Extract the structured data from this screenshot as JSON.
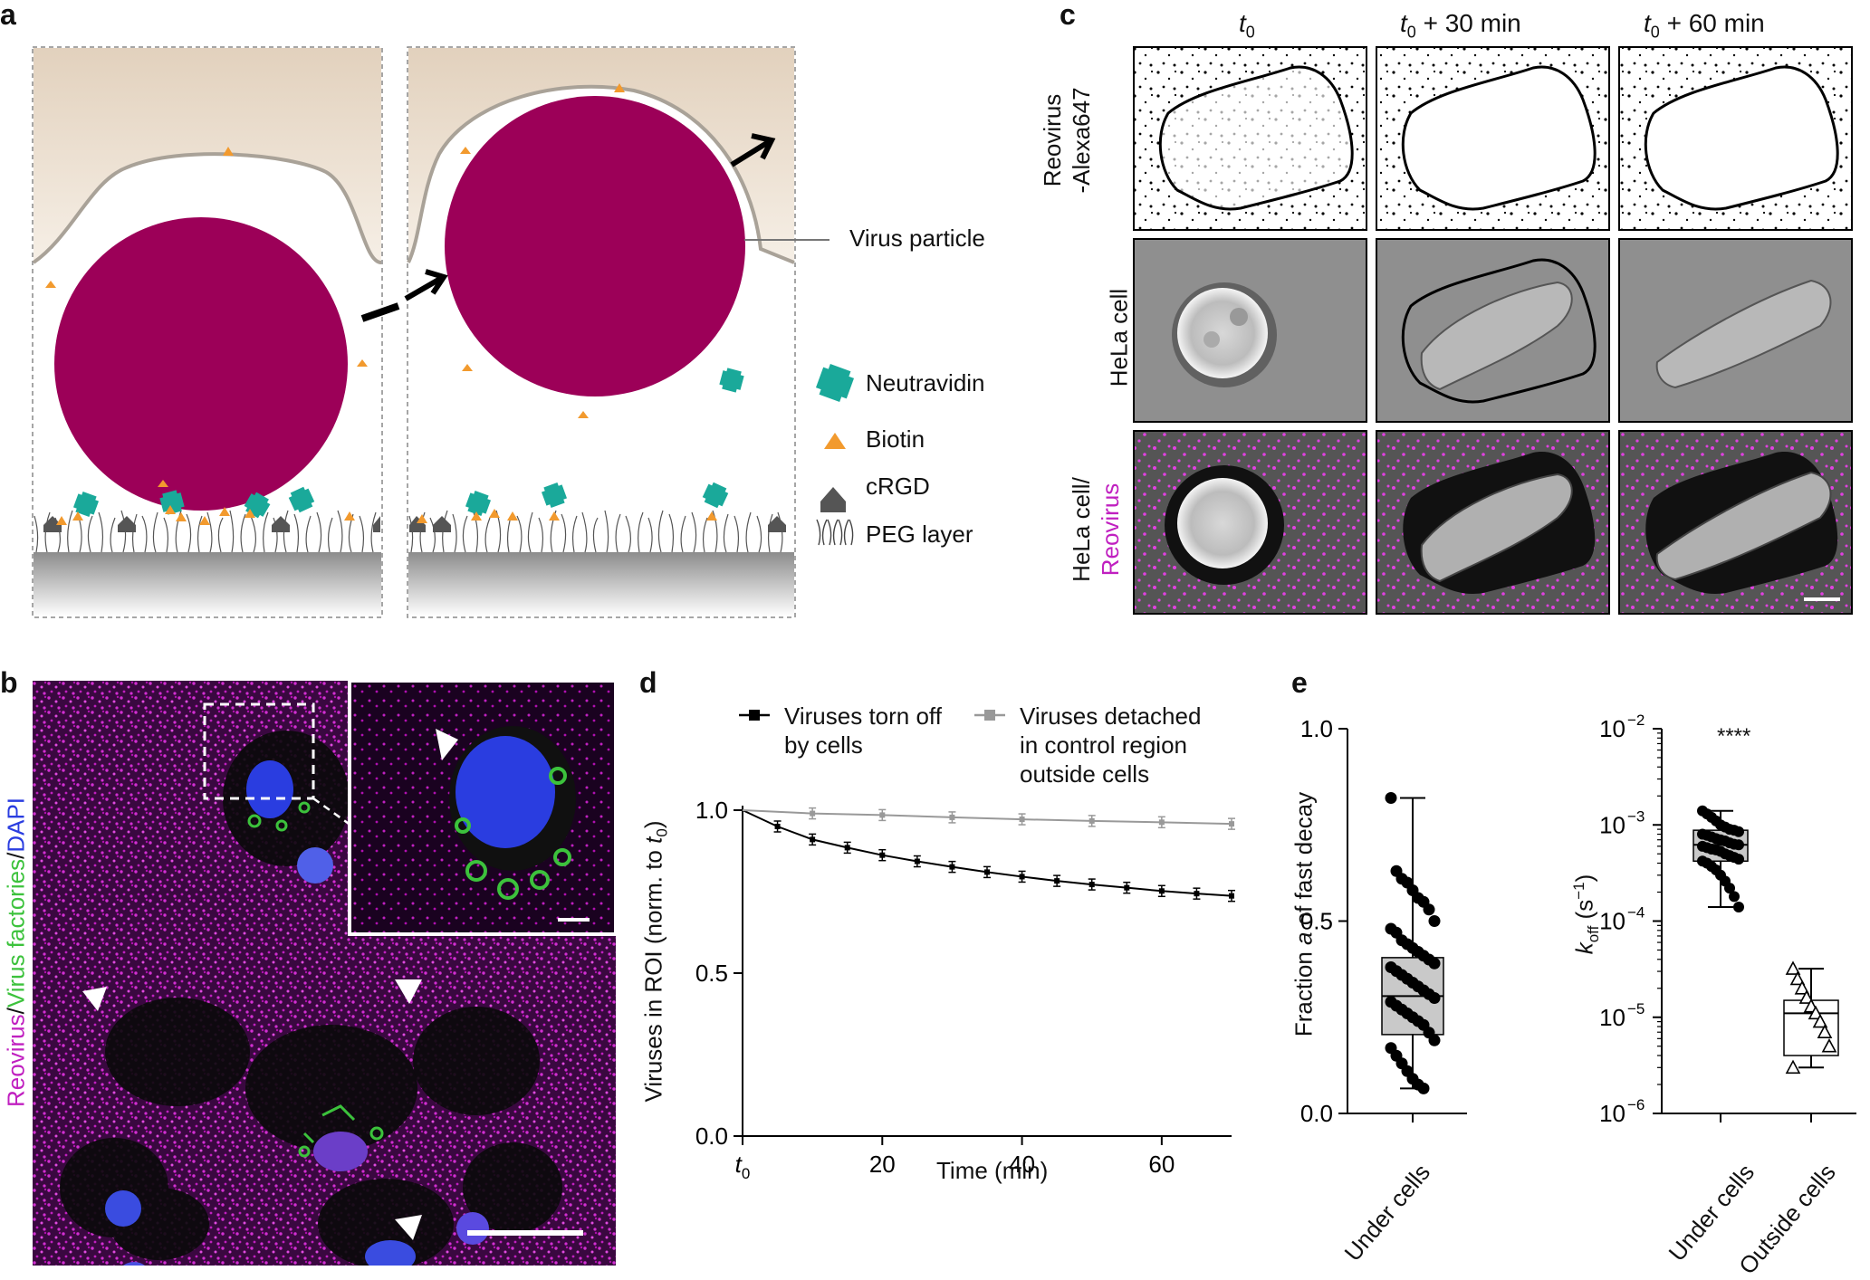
{
  "panels": {
    "a": {
      "label": "a",
      "virus_label": "Virus particle",
      "legend": [
        {
          "icon": "neutravidin-icon",
          "text": "Neutravidin",
          "color": "#1aa99a"
        },
        {
          "icon": "biotin-icon",
          "text": "Biotin",
          "color": "#f29a2e"
        },
        {
          "icon": "crgd-icon",
          "text": "cRGD",
          "color": "#555555"
        },
        {
          "icon": "peg-icon",
          "text": "PEG layer",
          "color": "#444444"
        }
      ],
      "colors": {
        "virus": "#9c0058",
        "cell": "#e6d6c4",
        "substrate": "#9a9a9a"
      }
    },
    "b": {
      "label": "b",
      "ylabel_parts": [
        "Reovirus",
        "/",
        "Virus factories",
        "/",
        "DAPI"
      ],
      "colors": {
        "reovirus": "#c020c0",
        "factories": "#3cc23c",
        "dapi": "#2a3de0"
      }
    },
    "c": {
      "label": "c",
      "columns": [
        "t0",
        "t0 + 30 min",
        "t0 + 60 min"
      ],
      "col_t": [
        "t",
        "t",
        "t"
      ],
      "col_sub": [
        "0",
        "0",
        "0"
      ],
      "col_rest": [
        "",
        " + 30 min",
        " + 60 min"
      ],
      "rows": [
        "Reovirus -Alexa647",
        "HeLa cell",
        "HeLa cell/ Reovirus"
      ],
      "row_label_lines": [
        [
          "Reovirus",
          "-Alexa647"
        ],
        [
          "HeLa cell"
        ],
        [
          "HeLa cell/",
          "Reovirus"
        ]
      ]
    },
    "d": {
      "label": "d",
      "legend": [
        "Viruses torn off by cells",
        "Viruses detached in control region outside cells"
      ],
      "legend_lines": [
        [
          "Viruses torn off",
          "by cells"
        ],
        [
          "Viruses detached",
          "in control region",
          "outside cells"
        ]
      ],
      "xlabel": "Time (min)",
      "ylabel": "Viruses in ROI (norm. to t0)",
      "ylabel_main": "Viruses in ROI (norm. to ",
      "ylabel_t": "t",
      "ylabel_sub": "0",
      "ylabel_end": ")",
      "x_first_tick": "t0",
      "x_first_t": "t",
      "x_first_sub": "0",
      "xticks": [
        "20",
        "40",
        "60"
      ],
      "yticks": [
        "0.0",
        "0.5",
        "1.0"
      ]
    },
    "e": {
      "label": "e",
      "left_ylabel": "Fraction a of fast decay",
      "left_ylabel_pre": "Fraction ",
      "left_ylabel_italic": "a",
      "left_ylabel_post": " of fast decay",
      "left_yticks": [
        "0.0",
        "0.5",
        "1.0"
      ],
      "left_category": "Under cells",
      "right_ylabel_k": "k",
      "right_ylabel_sub": "off",
      "right_ylabel_unit": " (s",
      "right_ylabel_exp": "−1",
      "right_ylabel_close": ")",
      "right_yticks_base": [
        "10",
        "10",
        "10",
        "10",
        "10"
      ],
      "right_yticks_exp": [
        "−2",
        "−3",
        "−4",
        "−5",
        "−6"
      ],
      "right_categories": [
        "Under cells",
        "Outside cells"
      ],
      "significance": "****"
    }
  },
  "chart_data": [
    {
      "type": "line",
      "panel": "d",
      "xlabel": "Time (min)",
      "ylabel": "Viruses in ROI (norm. to t0)",
      "xlim": [
        0,
        70
      ],
      "ylim": [
        0,
        1.0
      ],
      "series": [
        {
          "name": "Viruses torn off by cells",
          "color": "#000000",
          "x": [
            0,
            5,
            10,
            15,
            20,
            25,
            30,
            35,
            40,
            45,
            50,
            55,
            60,
            65,
            70
          ],
          "y": [
            1.0,
            0.95,
            0.91,
            0.885,
            0.862,
            0.843,
            0.826,
            0.81,
            0.796,
            0.783,
            0.772,
            0.762,
            0.752,
            0.744,
            0.737
          ]
        },
        {
          "name": "Viruses detached in control region outside cells",
          "color": "#999999",
          "x": [
            0,
            10,
            20,
            30,
            40,
            50,
            60,
            70
          ],
          "y": [
            1.0,
            0.99,
            0.985,
            0.978,
            0.972,
            0.967,
            0.963,
            0.958
          ]
        }
      ]
    },
    {
      "type": "box",
      "panel": "e-left",
      "ylabel": "Fraction a of fast decay",
      "ylim": [
        0,
        1.0
      ],
      "categories": [
        "Under cells"
      ],
      "box": {
        "min": 0.065,
        "q1": 0.205,
        "median": 0.305,
        "q3": 0.405,
        "max": 0.82
      },
      "points": [
        0.82,
        0.63,
        0.61,
        0.6,
        0.58,
        0.56,
        0.55,
        0.53,
        0.5,
        0.48,
        0.47,
        0.45,
        0.44,
        0.43,
        0.42,
        0.41,
        0.4,
        0.39,
        0.38,
        0.37,
        0.36,
        0.35,
        0.34,
        0.33,
        0.32,
        0.31,
        0.3,
        0.29,
        0.28,
        0.27,
        0.26,
        0.25,
        0.24,
        0.23,
        0.21,
        0.19,
        0.17,
        0.15,
        0.13,
        0.11,
        0.09,
        0.075,
        0.065
      ]
    },
    {
      "type": "box",
      "panel": "e-right",
      "ylabel": "koff (s-1)",
      "yscale": "log",
      "ylim": [
        1e-06,
        0.01
      ],
      "categories": [
        "Under cells",
        "Outside cells"
      ],
      "boxes": [
        {
          "min": 0.00014,
          "q1": 0.00042,
          "median": 0.00062,
          "q3": 0.00088,
          "max": 0.0014,
          "points": [
            0.0014,
            0.0013,
            0.0012,
            0.0011,
            0.001,
            0.00095,
            0.0009,
            0.00088,
            0.00085,
            0.0008,
            0.00078,
            0.00075,
            0.00072,
            0.0007,
            0.00068,
            0.00065,
            0.00063,
            0.00062,
            0.0006,
            0.00058,
            0.00056,
            0.00055,
            0.00053,
            0.0005,
            0.00048,
            0.00046,
            0.00044,
            0.00042,
            0.0004,
            0.00037,
            0.00034,
            0.0003,
            0.00026,
            0.00022,
            0.00018,
            0.00014
          ]
        },
        {
          "min": 3e-06,
          "q1": 4e-06,
          "median": 1.1e-05,
          "q3": 1.5e-05,
          "max": 3.2e-05,
          "points": [
            3.2e-05,
            2.5e-05,
            2e-05,
            1.6e-05,
            1.3e-05,
            1.1e-05,
            9e-06,
            7e-06,
            5e-06,
            3e-06
          ]
        }
      ],
      "annotations": [
        "****"
      ]
    }
  ]
}
